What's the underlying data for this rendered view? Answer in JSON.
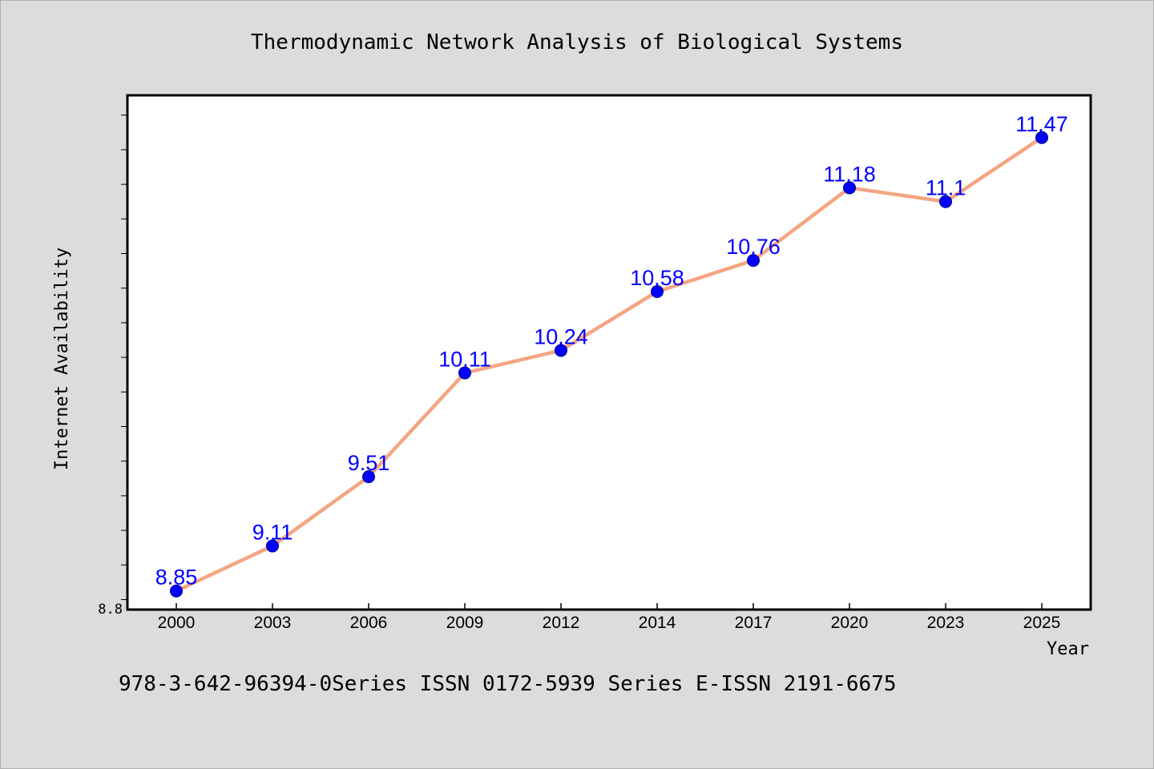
{
  "title": "Thermodynamic Network Analysis of Biological Systems",
  "footer_text": "978-3-642-96394-0Series ISSN 0172-5939 Series E-ISSN 2191-6675",
  "colors": {
    "background": "#dcdcdc",
    "plot_background": "#ffffff",
    "line": "#f4a582",
    "marker": "#0000ff",
    "data_label": "#0000ff",
    "text": "#000000"
  },
  "chart_data": {
    "type": "line",
    "title": "Thermodynamic Network Analysis of Biological Systems",
    "xlabel": "Year",
    "ylabel": "Internet Availability",
    "categories": [
      "2000",
      "2003",
      "2006",
      "2009",
      "2012",
      "2014",
      "2017",
      "2020",
      "2023",
      "2025"
    ],
    "series": [
      {
        "values": [
          8.85,
          9.11,
          9.51,
          10.11,
          10.24,
          10.58,
          10.76,
          11.18,
          11.1,
          11.47
        ],
        "labels": [
          "8.85",
          "9.11",
          "9.51",
          "10.11",
          "10.24",
          "10.58",
          "10.76",
          "11.18",
          "11.1",
          "11.47"
        ]
      }
    ],
    "ylim": [
      8.8,
      11.8
    ],
    "ytick_labels": [
      "8.8"
    ],
    "minor_tick_step": 0.2,
    "grid": false,
    "legend": "none"
  }
}
